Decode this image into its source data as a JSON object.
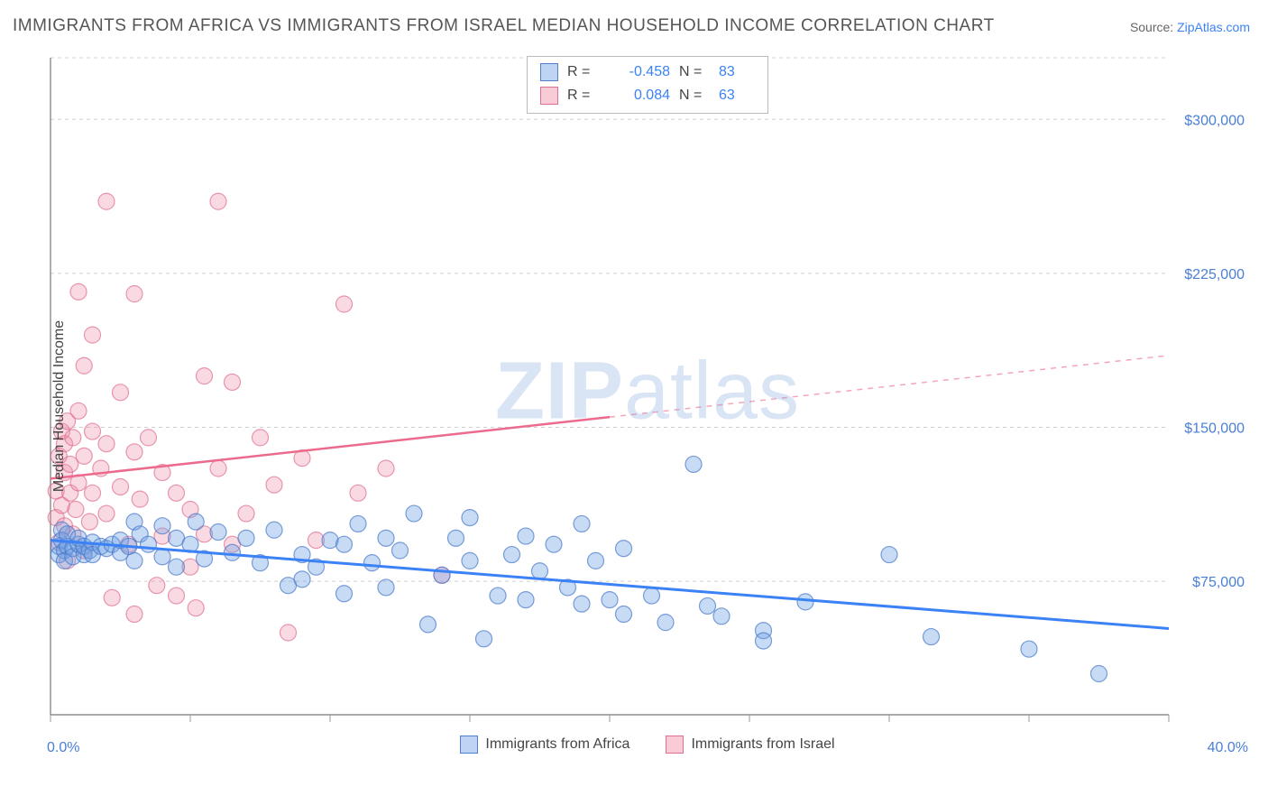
{
  "title": "IMMIGRANTS FROM AFRICA VS IMMIGRANTS FROM ISRAEL MEDIAN HOUSEHOLD INCOME CORRELATION CHART",
  "source_prefix": "Source: ",
  "source_label": "ZipAtlas.com",
  "watermark": {
    "bold": "ZIP",
    "rest": "atlas"
  },
  "ylabel": "Median Household Income",
  "chart": {
    "type": "scatter",
    "xlim": [
      0,
      40
    ],
    "ylim": [
      10000,
      330000
    ],
    "x_tick_positions": [
      0,
      5,
      10,
      15,
      20,
      25,
      30,
      35,
      40
    ],
    "x_tick_labels_shown": {
      "start": "0.0%",
      "end": "40.0%"
    },
    "y_grid": [
      75000,
      150000,
      225000,
      300000
    ],
    "y_tick_labels": [
      "$75,000",
      "$150,000",
      "$225,000",
      "$300,000"
    ],
    "background_color": "#ffffff",
    "grid_color": "#d0d0d0",
    "axis_color": "#777777",
    "marker_radius": 9,
    "series": {
      "blue": {
        "label": "Immigrants from Africa",
        "color_fill": "rgba(110,160,230,0.38)",
        "color_stroke": "rgba(70,120,200,0.7)",
        "R": "-0.458",
        "N": "83",
        "trend": {
          "y_at_x0": 95000,
          "y_at_x40": 52000,
          "color": "#3b82f6",
          "width": 3
        },
        "points": [
          [
            0.3,
            92000
          ],
          [
            0.3,
            88000
          ],
          [
            0.4,
            100000
          ],
          [
            0.4,
            95000
          ],
          [
            0.5,
            90000
          ],
          [
            0.5,
            85000
          ],
          [
            0.6,
            92000
          ],
          [
            0.6,
            98000
          ],
          [
            0.8,
            91000
          ],
          [
            0.8,
            87000
          ],
          [
            1.0,
            93000
          ],
          [
            1.0,
            96000
          ],
          [
            1.2,
            88000
          ],
          [
            1.2,
            92000
          ],
          [
            1.4,
            90000
          ],
          [
            1.5,
            94000
          ],
          [
            1.5,
            88000
          ],
          [
            1.8,
            92000
          ],
          [
            2.0,
            91000
          ],
          [
            2.2,
            93000
          ],
          [
            2.5,
            89000
          ],
          [
            2.5,
            95000
          ],
          [
            2.8,
            92000
          ],
          [
            3.0,
            104000
          ],
          [
            3.0,
            85000
          ],
          [
            3.2,
            98000
          ],
          [
            3.5,
            93000
          ],
          [
            4.0,
            102000
          ],
          [
            4.0,
            87000
          ],
          [
            4.5,
            96000
          ],
          [
            4.5,
            82000
          ],
          [
            5.0,
            93000
          ],
          [
            5.2,
            104000
          ],
          [
            5.5,
            86000
          ],
          [
            6.0,
            99000
          ],
          [
            6.5,
            89000
          ],
          [
            7.0,
            96000
          ],
          [
            7.5,
            84000
          ],
          [
            8.0,
            100000
          ],
          [
            8.5,
            73000
          ],
          [
            9.0,
            76000
          ],
          [
            9.0,
            88000
          ],
          [
            9.5,
            82000
          ],
          [
            10.0,
            95000
          ],
          [
            10.5,
            69000
          ],
          [
            10.5,
            93000
          ],
          [
            11.0,
            103000
          ],
          [
            11.5,
            84000
          ],
          [
            12.0,
            96000
          ],
          [
            12.0,
            72000
          ],
          [
            12.5,
            90000
          ],
          [
            13.0,
            108000
          ],
          [
            13.5,
            54000
          ],
          [
            14.0,
            78000
          ],
          [
            14.5,
            96000
          ],
          [
            15.0,
            85000
          ],
          [
            15.0,
            106000
          ],
          [
            15.5,
            47000
          ],
          [
            16.0,
            68000
          ],
          [
            16.5,
            88000
          ],
          [
            17.0,
            97000
          ],
          [
            17.0,
            66000
          ],
          [
            17.5,
            80000
          ],
          [
            18.0,
            93000
          ],
          [
            18.5,
            72000
          ],
          [
            19.0,
            103000
          ],
          [
            19.0,
            64000
          ],
          [
            19.5,
            85000
          ],
          [
            20.0,
            66000
          ],
          [
            20.5,
            59000
          ],
          [
            20.5,
            91000
          ],
          [
            21.5,
            68000
          ],
          [
            22.0,
            55000
          ],
          [
            23.0,
            132000
          ],
          [
            23.5,
            63000
          ],
          [
            24.0,
            58000
          ],
          [
            25.5,
            51000
          ],
          [
            25.5,
            46000
          ],
          [
            27.0,
            65000
          ],
          [
            30.0,
            88000
          ],
          [
            31.5,
            48000
          ],
          [
            35.0,
            42000
          ],
          [
            37.5,
            30000
          ]
        ]
      },
      "pink": {
        "label": "Immigrants from Israel",
        "color_fill": "rgba(240,140,165,0.32)",
        "color_stroke": "rgba(220,100,135,0.65)",
        "R": "0.084",
        "N": "63",
        "trend": {
          "y_at_x0": 125000,
          "y_at_x40": 185000,
          "color": "#ec6a8c",
          "width": 2.5,
          "dash_after_x": 20
        },
        "points": [
          [
            0.2,
            106000
          ],
          [
            0.2,
            119000
          ],
          [
            0.3,
            94000
          ],
          [
            0.3,
            136000
          ],
          [
            0.4,
            112000
          ],
          [
            0.4,
            148000
          ],
          [
            0.5,
            102000
          ],
          [
            0.5,
            128000
          ],
          [
            0.5,
            142000
          ],
          [
            0.6,
            85000
          ],
          [
            0.6,
            153000
          ],
          [
            0.7,
            118000
          ],
          [
            0.7,
            132000
          ],
          [
            0.8,
            98000
          ],
          [
            0.8,
            145000
          ],
          [
            0.9,
            110000
          ],
          [
            1.0,
            158000
          ],
          [
            1.0,
            123000
          ],
          [
            1.0,
            216000
          ],
          [
            1.2,
            90000
          ],
          [
            1.2,
            180000
          ],
          [
            1.2,
            136000
          ],
          [
            1.4,
            104000
          ],
          [
            1.5,
            195000
          ],
          [
            1.5,
            118000
          ],
          [
            1.5,
            148000
          ],
          [
            1.8,
            130000
          ],
          [
            2.0,
            260000
          ],
          [
            2.0,
            142000
          ],
          [
            2.0,
            108000
          ],
          [
            2.2,
            67000
          ],
          [
            2.5,
            121000
          ],
          [
            2.5,
            167000
          ],
          [
            2.8,
            93000
          ],
          [
            3.0,
            215000
          ],
          [
            3.0,
            138000
          ],
          [
            3.0,
            59000
          ],
          [
            3.2,
            115000
          ],
          [
            3.5,
            145000
          ],
          [
            3.8,
            73000
          ],
          [
            4.0,
            128000
          ],
          [
            4.0,
            97000
          ],
          [
            4.5,
            118000
          ],
          [
            4.5,
            68000
          ],
          [
            5.0,
            110000
          ],
          [
            5.0,
            82000
          ],
          [
            5.2,
            62000
          ],
          [
            5.5,
            175000
          ],
          [
            5.5,
            98000
          ],
          [
            6.0,
            260000
          ],
          [
            6.0,
            130000
          ],
          [
            6.5,
            93000
          ],
          [
            6.5,
            172000
          ],
          [
            7.0,
            108000
          ],
          [
            7.5,
            145000
          ],
          [
            8.0,
            122000
          ],
          [
            8.5,
            50000
          ],
          [
            9.0,
            135000
          ],
          [
            9.5,
            95000
          ],
          [
            10.5,
            210000
          ],
          [
            11.0,
            118000
          ],
          [
            12.0,
            130000
          ],
          [
            14.0,
            78000
          ]
        ]
      }
    },
    "legend_top": {
      "rows": [
        {
          "swatch": "blue",
          "R_label": "R =",
          "R": "-0.458",
          "N_label": "N =",
          "N": "83"
        },
        {
          "swatch": "pink",
          "R_label": "R =",
          "R": " 0.084",
          "N_label": "N =",
          "N": "63"
        }
      ]
    },
    "legend_bottom": [
      {
        "swatch": "blue",
        "label": "Immigrants from Africa"
      },
      {
        "swatch": "pink",
        "label": "Immigrants from Israel"
      }
    ]
  }
}
